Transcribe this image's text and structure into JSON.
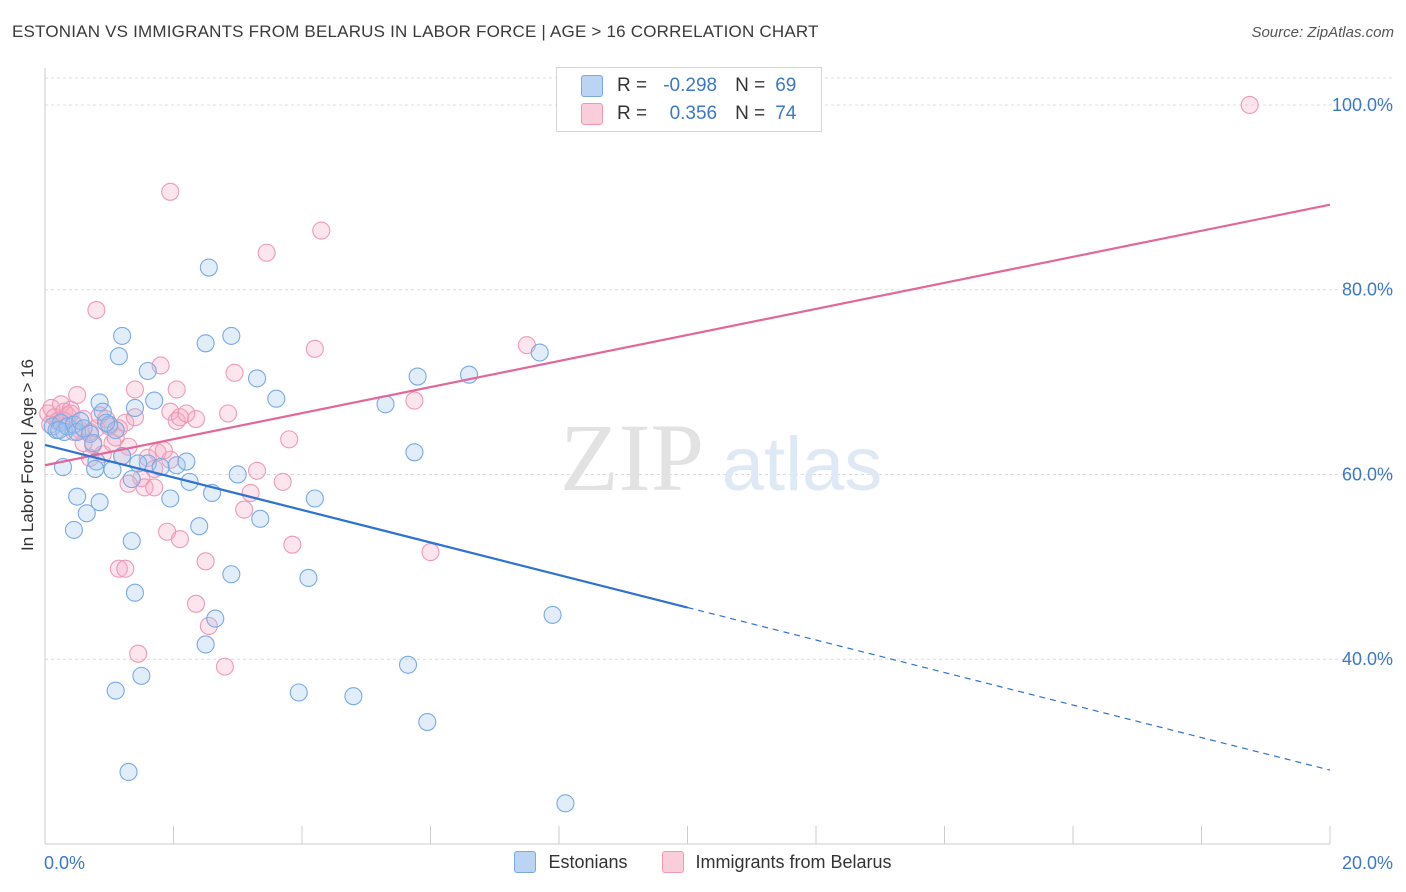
{
  "header": {
    "title": "ESTONIAN VS IMMIGRANTS FROM BELARUS IN LABOR FORCE | AGE > 16 CORRELATION CHART",
    "source": "Source: ZipAtlas.com"
  },
  "watermark": {
    "zip": "ZIP",
    "atlas": "atlas"
  },
  "legend_top": {
    "rows": [
      {
        "r_label": "R =",
        "r_value": "-0.298",
        "n_label": "N =",
        "n_value": "69"
      },
      {
        "r_label": "R =",
        "r_value": "0.356",
        "n_label": "N =",
        "n_value": "74"
      }
    ]
  },
  "legend_bottom": {
    "items": [
      "Estonians",
      "Immigrants from Belarus"
    ]
  },
  "chart_data": {
    "type": "scatter",
    "title": "ESTONIAN VS IMMIGRANTS FROM BELARUS IN LABOR FORCE | AGE > 16 CORRELATION CHART",
    "xlabel": "",
    "ylabel": "In Labor Force | Age > 16",
    "xlim": [
      0,
      20
    ],
    "ylim": [
      20,
      104
    ],
    "x_tick_labels": [
      "0.0%",
      "20.0%"
    ],
    "y_ticks": [
      40,
      60,
      80,
      100
    ],
    "y_tick_labels": [
      "40.0%",
      "60.0%",
      "80.0%",
      "100.0%"
    ],
    "grid": true,
    "legend_position": "top-center and bottom",
    "colors": {
      "Estonians": "#7aa9e3",
      "Immigrants from Belarus": "#f09ab6",
      "estonian_line": "#2f72d0",
      "belarus_line": "#e0689a"
    },
    "series": [
      {
        "name": "Estonians",
        "r": -0.298,
        "n": 69,
        "trend": {
          "x0": 0,
          "y0": 63.2,
          "x1": 20,
          "y1": 28.0,
          "solid_until_x": 10
        },
        "points": [
          [
            0.12,
            65.2
          ],
          [
            0.18,
            64.8
          ],
          [
            0.25,
            65.6
          ],
          [
            0.3,
            64.6
          ],
          [
            0.35,
            65.2
          ],
          [
            0.45,
            65.4
          ],
          [
            0.5,
            64.6
          ],
          [
            0.55,
            65.8
          ],
          [
            0.6,
            65.0
          ],
          [
            0.7,
            64.4
          ],
          [
            0.75,
            63.4
          ],
          [
            0.85,
            67.8
          ],
          [
            0.9,
            66.8
          ],
          [
            1.0,
            65.4
          ],
          [
            1.1,
            64.8
          ],
          [
            1.2,
            62.0
          ],
          [
            0.28,
            60.8
          ],
          [
            0.8,
            61.4
          ],
          [
            0.78,
            60.6
          ],
          [
            1.05,
            60.5
          ],
          [
            1.35,
            59.5
          ],
          [
            1.6,
            61.2
          ],
          [
            0.5,
            57.6
          ],
          [
            0.85,
            57.0
          ],
          [
            0.65,
            55.8
          ],
          [
            0.45,
            54.0
          ],
          [
            1.4,
            67.2
          ],
          [
            1.7,
            68.0
          ],
          [
            1.6,
            71.2
          ],
          [
            1.15,
            72.8
          ],
          [
            1.2,
            75.0
          ],
          [
            2.5,
            74.2
          ],
          [
            2.9,
            75.0
          ],
          [
            2.55,
            82.4
          ],
          [
            3.3,
            70.4
          ],
          [
            3.6,
            68.2
          ],
          [
            1.45,
            61.2
          ],
          [
            1.8,
            60.8
          ],
          [
            2.05,
            61.0
          ],
          [
            2.25,
            59.2
          ],
          [
            1.95,
            57.4
          ],
          [
            2.6,
            58.0
          ],
          [
            3.0,
            60.0
          ],
          [
            3.35,
            55.2
          ],
          [
            4.2,
            57.4
          ],
          [
            2.4,
            54.4
          ],
          [
            1.35,
            52.8
          ],
          [
            2.9,
            49.2
          ],
          [
            4.1,
            48.8
          ],
          [
            1.4,
            47.2
          ],
          [
            2.65,
            44.4
          ],
          [
            2.5,
            41.6
          ],
          [
            1.5,
            38.2
          ],
          [
            1.1,
            36.6
          ],
          [
            3.95,
            36.4
          ],
          [
            4.8,
            36.0
          ],
          [
            5.65,
            39.4
          ],
          [
            5.95,
            33.2
          ],
          [
            6.6,
            70.8
          ],
          [
            5.8,
            70.6
          ],
          [
            5.3,
            67.6
          ],
          [
            5.75,
            62.4
          ],
          [
            7.7,
            73.2
          ],
          [
            7.9,
            44.8
          ],
          [
            1.3,
            27.8
          ],
          [
            8.1,
            24.4
          ],
          [
            0.22,
            64.8
          ],
          [
            0.95,
            65.6
          ],
          [
            2.2,
            61.4
          ]
        ]
      },
      {
        "name": "Immigrants from Belarus",
        "r": 0.356,
        "n": 74,
        "trend": {
          "x0": 0,
          "y0": 61.0,
          "x1": 20,
          "y1": 89.2
        },
        "points": [
          [
            0.05,
            66.6
          ],
          [
            0.1,
            67.2
          ],
          [
            0.15,
            66.2
          ],
          [
            0.2,
            65.8
          ],
          [
            0.25,
            67.6
          ],
          [
            0.3,
            66.8
          ],
          [
            0.35,
            66.4
          ],
          [
            0.4,
            67.0
          ],
          [
            0.08,
            65.4
          ],
          [
            0.5,
            68.6
          ],
          [
            0.55,
            64.8
          ],
          [
            0.6,
            66.0
          ],
          [
            0.7,
            64.6
          ],
          [
            0.75,
            63.2
          ],
          [
            0.8,
            65.0
          ],
          [
            0.85,
            66.4
          ],
          [
            0.95,
            66.0
          ],
          [
            1.0,
            65.2
          ],
          [
            1.05,
            63.4
          ],
          [
            1.1,
            64.0
          ],
          [
            1.15,
            65.0
          ],
          [
            1.25,
            65.6
          ],
          [
            1.3,
            63.0
          ],
          [
            1.4,
            66.2
          ],
          [
            0.7,
            61.8
          ],
          [
            0.9,
            62.2
          ],
          [
            1.2,
            62.0
          ],
          [
            1.6,
            61.8
          ],
          [
            1.7,
            60.6
          ],
          [
            1.95,
            61.6
          ],
          [
            1.5,
            59.6
          ],
          [
            1.3,
            59.0
          ],
          [
            1.55,
            58.6
          ],
          [
            1.7,
            58.6
          ],
          [
            0.8,
            77.8
          ],
          [
            1.4,
            69.2
          ],
          [
            1.8,
            71.8
          ],
          [
            2.05,
            69.2
          ],
          [
            1.95,
            66.8
          ],
          [
            2.05,
            65.8
          ],
          [
            2.1,
            66.2
          ],
          [
            2.35,
            66.0
          ],
          [
            2.85,
            66.6
          ],
          [
            2.95,
            71.0
          ],
          [
            1.9,
            53.8
          ],
          [
            2.1,
            53.0
          ],
          [
            2.5,
            50.6
          ],
          [
            1.15,
            49.8
          ],
          [
            1.25,
            49.8
          ],
          [
            2.35,
            46.0
          ],
          [
            2.55,
            43.6
          ],
          [
            1.45,
            40.6
          ],
          [
            2.8,
            39.2
          ],
          [
            3.1,
            56.2
          ],
          [
            3.3,
            60.4
          ],
          [
            3.2,
            58.0
          ],
          [
            3.7,
            59.2
          ],
          [
            3.8,
            63.8
          ],
          [
            3.85,
            52.4
          ],
          [
            4.2,
            73.6
          ],
          [
            3.45,
            84.0
          ],
          [
            4.3,
            86.4
          ],
          [
            1.95,
            90.6
          ],
          [
            5.75,
            68.0
          ],
          [
            7.5,
            74.0
          ],
          [
            6.0,
            51.6
          ],
          [
            0.4,
            66.6
          ],
          [
            0.6,
            63.4
          ],
          [
            1.75,
            62.4
          ],
          [
            2.2,
            66.6
          ],
          [
            0.3,
            65.8
          ],
          [
            0.45,
            64.6
          ],
          [
            1.85,
            62.6
          ],
          [
            18.75,
            100.0
          ]
        ]
      }
    ]
  }
}
